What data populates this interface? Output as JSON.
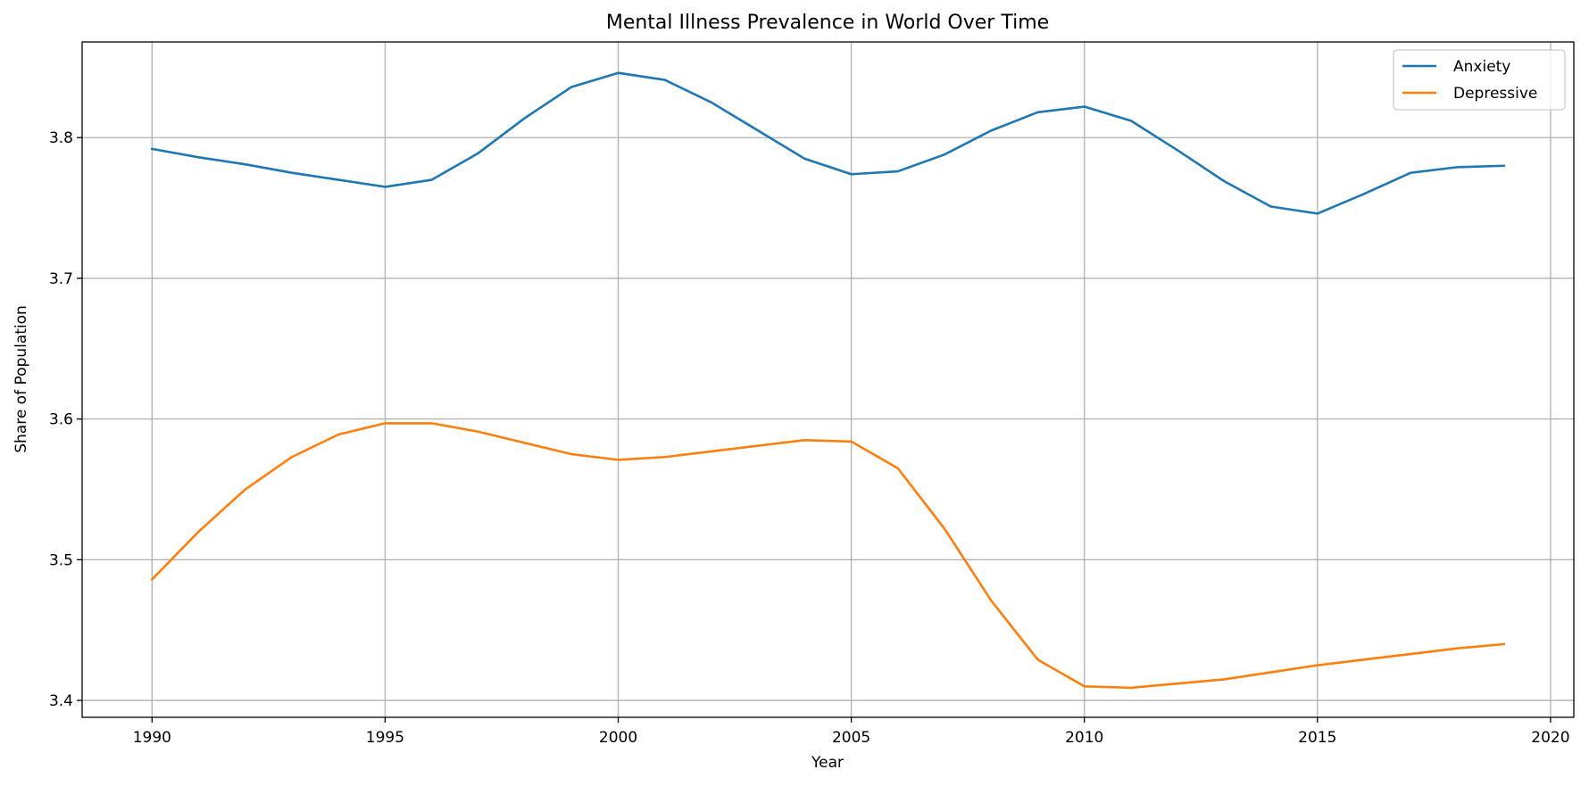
{
  "chart_data": {
    "type": "line",
    "title": "Mental Illness Prevalence in World Over Time",
    "xlabel": "Year",
    "ylabel": "Share of Population",
    "xlim": [
      1988.5,
      2020.5
    ],
    "ylim": [
      3.388,
      3.868
    ],
    "xticks": [
      1990,
      1995,
      2000,
      2005,
      2010,
      2015,
      2020
    ],
    "yticks": [
      3.4,
      3.5,
      3.6,
      3.7,
      3.8
    ],
    "grid": true,
    "legend_position": "top-right",
    "x": [
      1990,
      1991,
      1992,
      1993,
      1994,
      1995,
      1996,
      1997,
      1998,
      1999,
      2000,
      2001,
      2002,
      2003,
      2004,
      2005,
      2006,
      2007,
      2008,
      2009,
      2010,
      2011,
      2012,
      2013,
      2014,
      2015,
      2016,
      2017,
      2018,
      2019
    ],
    "series": [
      {
        "name": "Anxiety",
        "color": "#1f77b4",
        "values": [
          3.792,
          3.786,
          3.781,
          3.775,
          3.77,
          3.765,
          3.77,
          3.789,
          3.814,
          3.836,
          3.846,
          3.841,
          3.825,
          3.805,
          3.785,
          3.774,
          3.776,
          3.788,
          3.805,
          3.818,
          3.822,
          3.812,
          3.791,
          3.769,
          3.751,
          3.746,
          3.76,
          3.775,
          3.779,
          3.78
        ]
      },
      {
        "name": "Depressive",
        "color": "#ff7f0e",
        "values": [
          3.486,
          3.52,
          3.55,
          3.573,
          3.589,
          3.597,
          3.597,
          3.591,
          3.583,
          3.575,
          3.571,
          3.573,
          3.577,
          3.581,
          3.585,
          3.584,
          3.565,
          3.522,
          3.471,
          3.429,
          3.41,
          3.409,
          3.412,
          3.415,
          3.42,
          3.425,
          3.429,
          3.433,
          3.437,
          3.44
        ]
      }
    ]
  }
}
